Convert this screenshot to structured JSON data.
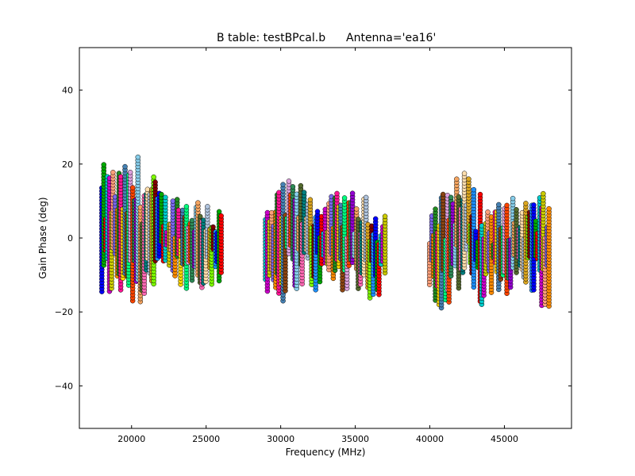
{
  "chart_data": {
    "type": "scatter",
    "title_left": "B table: testBPcal.b",
    "title_right": "Antenna='ea16'",
    "xlabel": "Frequency (MHz)",
    "ylabel": "Gain Phase (deg)",
    "xlim": [
      16500,
      49500
    ],
    "ylim": [
      -51.5,
      51.5
    ],
    "xticks": [
      {
        "value": 20000,
        "label": "20000"
      },
      {
        "value": 25000,
        "label": "25000"
      },
      {
        "value": 30000,
        "label": "30000"
      },
      {
        "value": 35000,
        "label": "35000"
      },
      {
        "value": 40000,
        "label": "40000"
      },
      {
        "value": 45000,
        "label": "45000"
      }
    ],
    "yticks": [
      {
        "value": 40,
        "label": "40"
      },
      {
        "value": 20,
        "label": "20"
      },
      {
        "value": 0,
        "label": "0"
      },
      {
        "value": -20,
        "label": "−20"
      },
      {
        "value": -40,
        "label": "−40"
      }
    ],
    "grid": false,
    "legend": "none",
    "marker": "circle",
    "point_color_cycle": [
      "#0000ff",
      "#00aa00",
      "#ff0000",
      "#00cccc",
      "#cc00cc",
      "#cccc00",
      "#ffa07a",
      "#7b68ee",
      "#ff8c00",
      "#228b22",
      "#ff1493",
      "#ffd700",
      "#4682b4",
      "#8b4513",
      "#00ff7f",
      "#dda0dd",
      "#ff4500",
      "#2e8b57",
      "#9400d3",
      "#87ceeb",
      "#f4a460",
      "#556b2f",
      "#ff69b4",
      "#008080",
      "#ffdead",
      "#b0c4de",
      "#daa520",
      "#7fff00",
      "#800000",
      "#1e90ff"
    ],
    "series": [
      {
        "x_range": [
          18000,
          26000
        ],
        "y_min": [
          -20,
          -16,
          -18,
          -20,
          -15,
          -12,
          -16,
          -14,
          -13,
          -15
        ],
        "y_max": [
          20,
          20,
          20,
          24,
          17,
          12,
          13,
          12,
          12,
          9
        ]
      },
      {
        "x_range": [
          29000,
          37000
        ],
        "y_min": [
          -14,
          -19,
          -14,
          -14,
          -15,
          -13,
          -15,
          -14,
          -17,
          -18
        ],
        "y_max": [
          9,
          14,
          17,
          14,
          12,
          12,
          13,
          12,
          11,
          10
        ]
      },
      {
        "x_range": [
          40000,
          48000
        ],
        "y_min": [
          -14,
          -21,
          -16,
          -15,
          -22,
          -16,
          -15,
          -14,
          -16,
          -22
        ],
        "y_max": [
          9,
          13,
          20,
          17,
          13,
          10,
          11,
          11,
          12,
          13
        ]
      }
    ]
  }
}
